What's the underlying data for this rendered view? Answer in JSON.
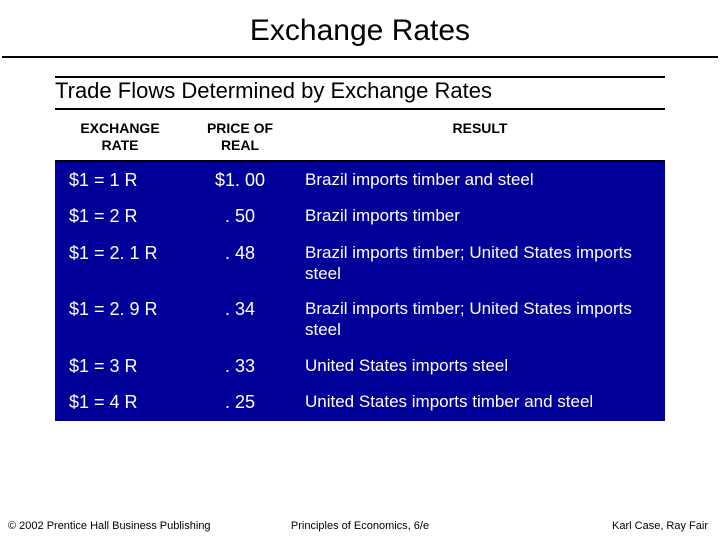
{
  "title": "Exchange Rates",
  "subtitle": "Trade Flows Determined by Exchange Rates",
  "table": {
    "columns": [
      "EXCHANGE RATE",
      "PRICE OF REAL",
      "RESULT"
    ],
    "rows": [
      [
        "$1 = 1 R",
        "$1. 00",
        "Brazil imports timber and steel"
      ],
      [
        "$1 = 2 R",
        ". 50",
        "Brazil imports timber"
      ],
      [
        "$1 = 2. 1 R",
        ". 48",
        "Brazil imports timber; United States imports steel"
      ],
      [
        "$1 = 2. 9 R",
        ". 34",
        "Brazil imports timber; United States imports steel"
      ],
      [
        "$1 = 3 R",
        ". 33",
        "United States imports steel"
      ],
      [
        "$1 = 4 R",
        ". 25",
        "United States imports timber and steel"
      ]
    ],
    "body_bg": "#000099",
    "body_text_color": "#ffffff"
  },
  "footer": {
    "left": "© 2002 Prentice Hall Business Publishing",
    "center": "Principles of Economics, 6/e",
    "right": "Karl Case, Ray Fair"
  }
}
